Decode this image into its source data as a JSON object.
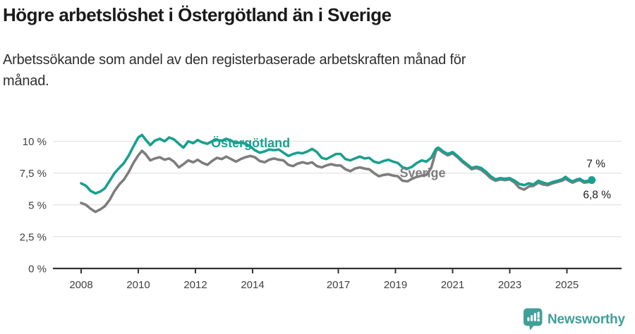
{
  "title": "Högre arbetslöshet i Östergötland än i Sverige",
  "subtitle": {
    "line1": "Arbetssökande som andel av den registerbaserade arbetskraften månad för",
    "line2": "månad."
  },
  "branding": {
    "logo_text": "Newsworthy",
    "logo_icon": "bar-chart-pin-icon",
    "logo_color": "#3f9f99"
  },
  "chart_data": {
    "type": "line",
    "title": "Högre arbetslöshet i Östergötland än i Sverige",
    "subtitle": "Arbetssökande som andel av den registerbaserade arbetskraften månad för månad.",
    "xlabel": "",
    "ylabel": "",
    "x_unit": "year",
    "y_unit": "%",
    "xlim": [
      2007,
      2026.9
    ],
    "ylim": [
      0,
      10.9
    ],
    "grid": "horizontal",
    "legend_position": "inline-labels",
    "x_ticks": [
      2008,
      2010,
      2012,
      2014,
      2017,
      2019,
      2021,
      2023,
      2025
    ],
    "y_ticks": [
      0,
      2.5,
      5,
      7.5,
      10
    ],
    "y_tick_labels": [
      "0 %",
      "2,5 %",
      "5 %",
      "7,5 %",
      "10 %"
    ],
    "style": {
      "grid_color": "#e2e2e2",
      "axis_color": "#333333",
      "tick_label_color": "#404040",
      "end_label_color": "#1c1c1c"
    },
    "series": [
      {
        "name": "Sverige",
        "color": "#7d7d7d",
        "end_label": "6,8 %",
        "end_value": 6.8,
        "label_pos": [
          2019.95,
          7.5
        ],
        "marker_end": false,
        "points": [
          [
            2008.0,
            5.15
          ],
          [
            2008.17,
            5.0
          ],
          [
            2008.33,
            4.7
          ],
          [
            2008.5,
            4.45
          ],
          [
            2008.67,
            4.65
          ],
          [
            2008.83,
            4.9
          ],
          [
            2009.0,
            5.4
          ],
          [
            2009.17,
            6.1
          ],
          [
            2009.33,
            6.6
          ],
          [
            2009.5,
            7.0
          ],
          [
            2009.67,
            7.6
          ],
          [
            2009.83,
            8.3
          ],
          [
            2010.0,
            8.9
          ],
          [
            2010.13,
            9.25
          ],
          [
            2010.25,
            9.0
          ],
          [
            2010.42,
            8.5
          ],
          [
            2010.58,
            8.65
          ],
          [
            2010.75,
            8.75
          ],
          [
            2010.92,
            8.55
          ],
          [
            2011.08,
            8.65
          ],
          [
            2011.25,
            8.4
          ],
          [
            2011.42,
            7.95
          ],
          [
            2011.58,
            8.2
          ],
          [
            2011.75,
            8.5
          ],
          [
            2011.92,
            8.35
          ],
          [
            2012.08,
            8.55
          ],
          [
            2012.25,
            8.3
          ],
          [
            2012.42,
            8.15
          ],
          [
            2012.58,
            8.45
          ],
          [
            2012.75,
            8.7
          ],
          [
            2012.92,
            8.6
          ],
          [
            2013.08,
            8.8
          ],
          [
            2013.25,
            8.6
          ],
          [
            2013.42,
            8.4
          ],
          [
            2013.58,
            8.6
          ],
          [
            2013.75,
            8.75
          ],
          [
            2013.92,
            8.85
          ],
          [
            2014.08,
            8.75
          ],
          [
            2014.25,
            8.45
          ],
          [
            2014.42,
            8.35
          ],
          [
            2014.58,
            8.55
          ],
          [
            2014.75,
            8.65
          ],
          [
            2014.92,
            8.55
          ],
          [
            2015.08,
            8.5
          ],
          [
            2015.25,
            8.15
          ],
          [
            2015.42,
            8.05
          ],
          [
            2015.58,
            8.25
          ],
          [
            2015.75,
            8.35
          ],
          [
            2015.92,
            8.25
          ],
          [
            2016.08,
            8.35
          ],
          [
            2016.25,
            8.05
          ],
          [
            2016.42,
            7.95
          ],
          [
            2016.58,
            8.1
          ],
          [
            2016.75,
            8.2
          ],
          [
            2016.92,
            8.1
          ],
          [
            2017.08,
            8.1
          ],
          [
            2017.25,
            7.8
          ],
          [
            2017.42,
            7.65
          ],
          [
            2017.58,
            7.85
          ],
          [
            2017.75,
            7.95
          ],
          [
            2017.92,
            7.85
          ],
          [
            2018.08,
            7.8
          ],
          [
            2018.25,
            7.5
          ],
          [
            2018.42,
            7.25
          ],
          [
            2018.58,
            7.35
          ],
          [
            2018.75,
            7.4
          ],
          [
            2018.92,
            7.3
          ],
          [
            2019.08,
            7.25
          ],
          [
            2019.25,
            6.9
          ],
          [
            2019.42,
            6.85
          ],
          [
            2019.58,
            7.05
          ],
          [
            2019.75,
            7.2
          ],
          [
            2019.92,
            7.3
          ],
          [
            2020.08,
            7.35
          ],
          [
            2020.25,
            7.9
          ],
          [
            2020.42,
            9.25
          ],
          [
            2020.5,
            9.4
          ],
          [
            2020.67,
            9.1
          ],
          [
            2020.83,
            8.9
          ],
          [
            2021.0,
            9.05
          ],
          [
            2021.17,
            8.75
          ],
          [
            2021.33,
            8.4
          ],
          [
            2021.5,
            8.1
          ],
          [
            2021.67,
            7.8
          ],
          [
            2021.83,
            7.9
          ],
          [
            2022.0,
            7.75
          ],
          [
            2022.17,
            7.45
          ],
          [
            2022.33,
            7.1
          ],
          [
            2022.5,
            6.9
          ],
          [
            2022.67,
            7.0
          ],
          [
            2022.83,
            6.95
          ],
          [
            2023.0,
            7.0
          ],
          [
            2023.17,
            6.75
          ],
          [
            2023.33,
            6.35
          ],
          [
            2023.5,
            6.2
          ],
          [
            2023.67,
            6.45
          ],
          [
            2023.83,
            6.5
          ],
          [
            2024.0,
            6.75
          ],
          [
            2024.17,
            6.6
          ],
          [
            2024.33,
            6.55
          ],
          [
            2024.5,
            6.7
          ],
          [
            2024.67,
            6.8
          ],
          [
            2024.83,
            6.9
          ],
          [
            2024.95,
            7.05
          ],
          [
            2025.1,
            6.85
          ],
          [
            2025.2,
            6.75
          ],
          [
            2025.35,
            6.9
          ],
          [
            2025.45,
            6.95
          ],
          [
            2025.6,
            6.75
          ],
          [
            2025.75,
            6.8
          ],
          [
            2025.87,
            6.8
          ]
        ]
      },
      {
        "name": "Östergötland",
        "color": "#17a08f",
        "end_label": "7 %",
        "end_value": 7.0,
        "label_pos": [
          2013.93,
          9.85
        ],
        "marker_end": true,
        "points": [
          [
            2008.0,
            6.7
          ],
          [
            2008.17,
            6.5
          ],
          [
            2008.33,
            6.1
          ],
          [
            2008.5,
            5.9
          ],
          [
            2008.67,
            6.05
          ],
          [
            2008.83,
            6.3
          ],
          [
            2009.0,
            6.9
          ],
          [
            2009.17,
            7.5
          ],
          [
            2009.33,
            7.9
          ],
          [
            2009.5,
            8.3
          ],
          [
            2009.67,
            8.9
          ],
          [
            2009.83,
            9.6
          ],
          [
            2010.0,
            10.3
          ],
          [
            2010.13,
            10.5
          ],
          [
            2010.25,
            10.15
          ],
          [
            2010.42,
            9.7
          ],
          [
            2010.58,
            10.05
          ],
          [
            2010.75,
            10.2
          ],
          [
            2010.92,
            10.0
          ],
          [
            2011.08,
            10.3
          ],
          [
            2011.25,
            10.15
          ],
          [
            2011.42,
            9.8
          ],
          [
            2011.58,
            9.5
          ],
          [
            2011.75,
            10.0
          ],
          [
            2011.92,
            9.85
          ],
          [
            2012.08,
            10.1
          ],
          [
            2012.25,
            9.9
          ],
          [
            2012.42,
            9.8
          ],
          [
            2012.58,
            10.0
          ],
          [
            2012.75,
            10.1
          ],
          [
            2012.92,
            10.05
          ],
          [
            2013.08,
            10.2
          ],
          [
            2013.25,
            10.05
          ],
          [
            2013.42,
            9.85
          ],
          [
            2013.58,
            9.9
          ],
          [
            2013.75,
            9.8
          ],
          [
            2013.92,
            9.6
          ],
          [
            2014.08,
            9.3
          ],
          [
            2014.25,
            9.1
          ],
          [
            2014.42,
            9.2
          ],
          [
            2014.58,
            9.35
          ],
          [
            2014.75,
            9.3
          ],
          [
            2014.92,
            9.35
          ],
          [
            2015.08,
            9.1
          ],
          [
            2015.25,
            8.85
          ],
          [
            2015.42,
            9.0
          ],
          [
            2015.58,
            9.1
          ],
          [
            2015.75,
            9.05
          ],
          [
            2015.92,
            9.2
          ],
          [
            2016.08,
            9.4
          ],
          [
            2016.25,
            9.15
          ],
          [
            2016.42,
            8.7
          ],
          [
            2016.58,
            8.6
          ],
          [
            2016.75,
            8.8
          ],
          [
            2016.92,
            9.0
          ],
          [
            2017.08,
            9.0
          ],
          [
            2017.25,
            8.6
          ],
          [
            2017.42,
            8.5
          ],
          [
            2017.58,
            8.65
          ],
          [
            2017.75,
            8.8
          ],
          [
            2017.92,
            8.65
          ],
          [
            2018.08,
            8.7
          ],
          [
            2018.25,
            8.4
          ],
          [
            2018.42,
            8.3
          ],
          [
            2018.58,
            8.45
          ],
          [
            2018.75,
            8.55
          ],
          [
            2018.92,
            8.4
          ],
          [
            2019.08,
            8.3
          ],
          [
            2019.25,
            7.95
          ],
          [
            2019.42,
            7.85
          ],
          [
            2019.58,
            8.0
          ],
          [
            2019.75,
            8.3
          ],
          [
            2019.92,
            8.5
          ],
          [
            2020.08,
            8.4
          ],
          [
            2020.25,
            8.7
          ],
          [
            2020.42,
            9.4
          ],
          [
            2020.5,
            9.5
          ],
          [
            2020.67,
            9.2
          ],
          [
            2020.83,
            9.0
          ],
          [
            2021.0,
            9.15
          ],
          [
            2021.17,
            8.85
          ],
          [
            2021.33,
            8.5
          ],
          [
            2021.5,
            8.2
          ],
          [
            2021.67,
            7.9
          ],
          [
            2021.83,
            8.0
          ],
          [
            2022.0,
            7.9
          ],
          [
            2022.17,
            7.6
          ],
          [
            2022.33,
            7.25
          ],
          [
            2022.5,
            7.0
          ],
          [
            2022.67,
            7.1
          ],
          [
            2022.83,
            7.05
          ],
          [
            2023.0,
            7.1
          ],
          [
            2023.17,
            6.9
          ],
          [
            2023.33,
            6.65
          ],
          [
            2023.5,
            6.55
          ],
          [
            2023.67,
            6.7
          ],
          [
            2023.83,
            6.6
          ],
          [
            2024.0,
            6.9
          ],
          [
            2024.17,
            6.75
          ],
          [
            2024.33,
            6.65
          ],
          [
            2024.5,
            6.8
          ],
          [
            2024.67,
            6.9
          ],
          [
            2024.83,
            7.0
          ],
          [
            2024.95,
            7.2
          ],
          [
            2025.1,
            6.95
          ],
          [
            2025.2,
            6.85
          ],
          [
            2025.35,
            7.0
          ],
          [
            2025.45,
            7.05
          ],
          [
            2025.6,
            6.85
          ],
          [
            2025.75,
            6.9
          ],
          [
            2025.87,
            6.95
          ]
        ]
      }
    ]
  }
}
